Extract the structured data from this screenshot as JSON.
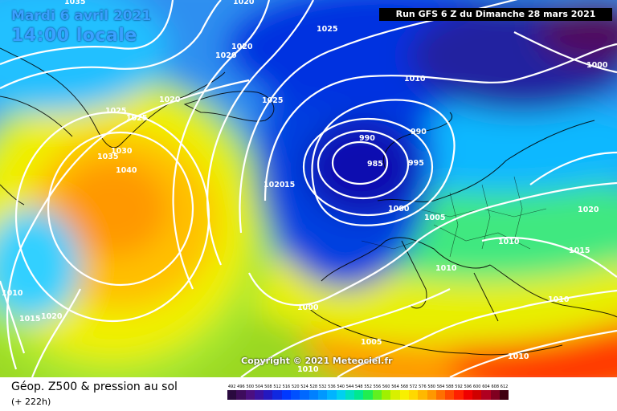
{
  "header": {
    "date": "Mardi 6 avril 2021",
    "time": "14:00 locale",
    "run": "Run GFS 6 Z du Dimanche 28 mars 2021"
  },
  "copyright": "Copyright © 2021 Meteociel.fr",
  "legend": {
    "title": "Géop. Z500 & pression au sol",
    "subtitle": "(+ 222h)",
    "scale_values": [
      "492",
      "496",
      "500",
      "504",
      "508",
      "512",
      "516",
      "520",
      "524",
      "528",
      "532",
      "536",
      "540",
      "544",
      "548",
      "552",
      "556",
      "560",
      "564",
      "568",
      "572",
      "576",
      "580",
      "584",
      "588",
      "592",
      "596",
      "600",
      "604",
      "608",
      "612"
    ],
    "scale_colors": [
      "#2a0a3e",
      "#3e0c5c",
      "#4b0f80",
      "#3a12a0",
      "#2318c0",
      "#1028e0",
      "#0038ff",
      "#0050ff",
      "#0068ff",
      "#0080ff",
      "#0098ff",
      "#00b4ff",
      "#00d0f0",
      "#00e0c0",
      "#00e890",
      "#20ee50",
      "#60f020",
      "#a0f000",
      "#d8f000",
      "#f8f000",
      "#ffd800",
      "#ffb800",
      "#ff9800",
      "#ff7000",
      "#ff4800",
      "#ff2000",
      "#f00000",
      "#d00000",
      "#b00020",
      "#800020",
      "#400010"
    ]
  },
  "isobars": [
    {
      "text": "1035",
      "role": "isobar"
    },
    {
      "text": "1025",
      "role": "isobar"
    },
    {
      "text": "1020",
      "role": "isobar"
    },
    {
      "text": "1020",
      "role": "isobar"
    },
    {
      "text": "1020",
      "role": "isobar"
    },
    {
      "text": "1020",
      "role": "isobar"
    },
    {
      "text": "1025",
      "role": "isobar"
    },
    {
      "text": "1025",
      "role": "isobar"
    },
    {
      "text": "1025",
      "role": "isobar"
    },
    {
      "text": "1030",
      "role": "isobar"
    },
    {
      "text": "1035",
      "role": "isobar"
    },
    {
      "text": "1040",
      "role": "isobar"
    },
    {
      "text": "1010",
      "role": "isobar"
    },
    {
      "text": "1000",
      "role": "isobar"
    },
    {
      "text": "990",
      "role": "isobar"
    },
    {
      "text": "990",
      "role": "isobar"
    },
    {
      "text": "985",
      "role": "isobar"
    },
    {
      "text": "995",
      "role": "isobar"
    },
    {
      "text": "1020",
      "role": "isobar"
    },
    {
      "text": "15",
      "role": "isobar"
    },
    {
      "text": "1000",
      "role": "isobar"
    },
    {
      "text": "1005",
      "role": "isobar"
    },
    {
      "text": "1010",
      "role": "isobar"
    },
    {
      "text": "1010",
      "role": "isobar"
    },
    {
      "text": "1015",
      "role": "isobar"
    },
    {
      "text": "1020",
      "role": "isobar"
    },
    {
      "text": "1010",
      "role": "isobar"
    },
    {
      "text": "1000",
      "role": "isobar"
    },
    {
      "text": "1005",
      "role": "isobar"
    },
    {
      "text": "1010",
      "role": "isobar"
    },
    {
      "text": "1010",
      "role": "isobar"
    },
    {
      "text": "1010",
      "role": "isobar"
    },
    {
      "text": "1015",
      "role": "isobar"
    },
    {
      "text": "1020",
      "role": "isobar"
    }
  ]
}
